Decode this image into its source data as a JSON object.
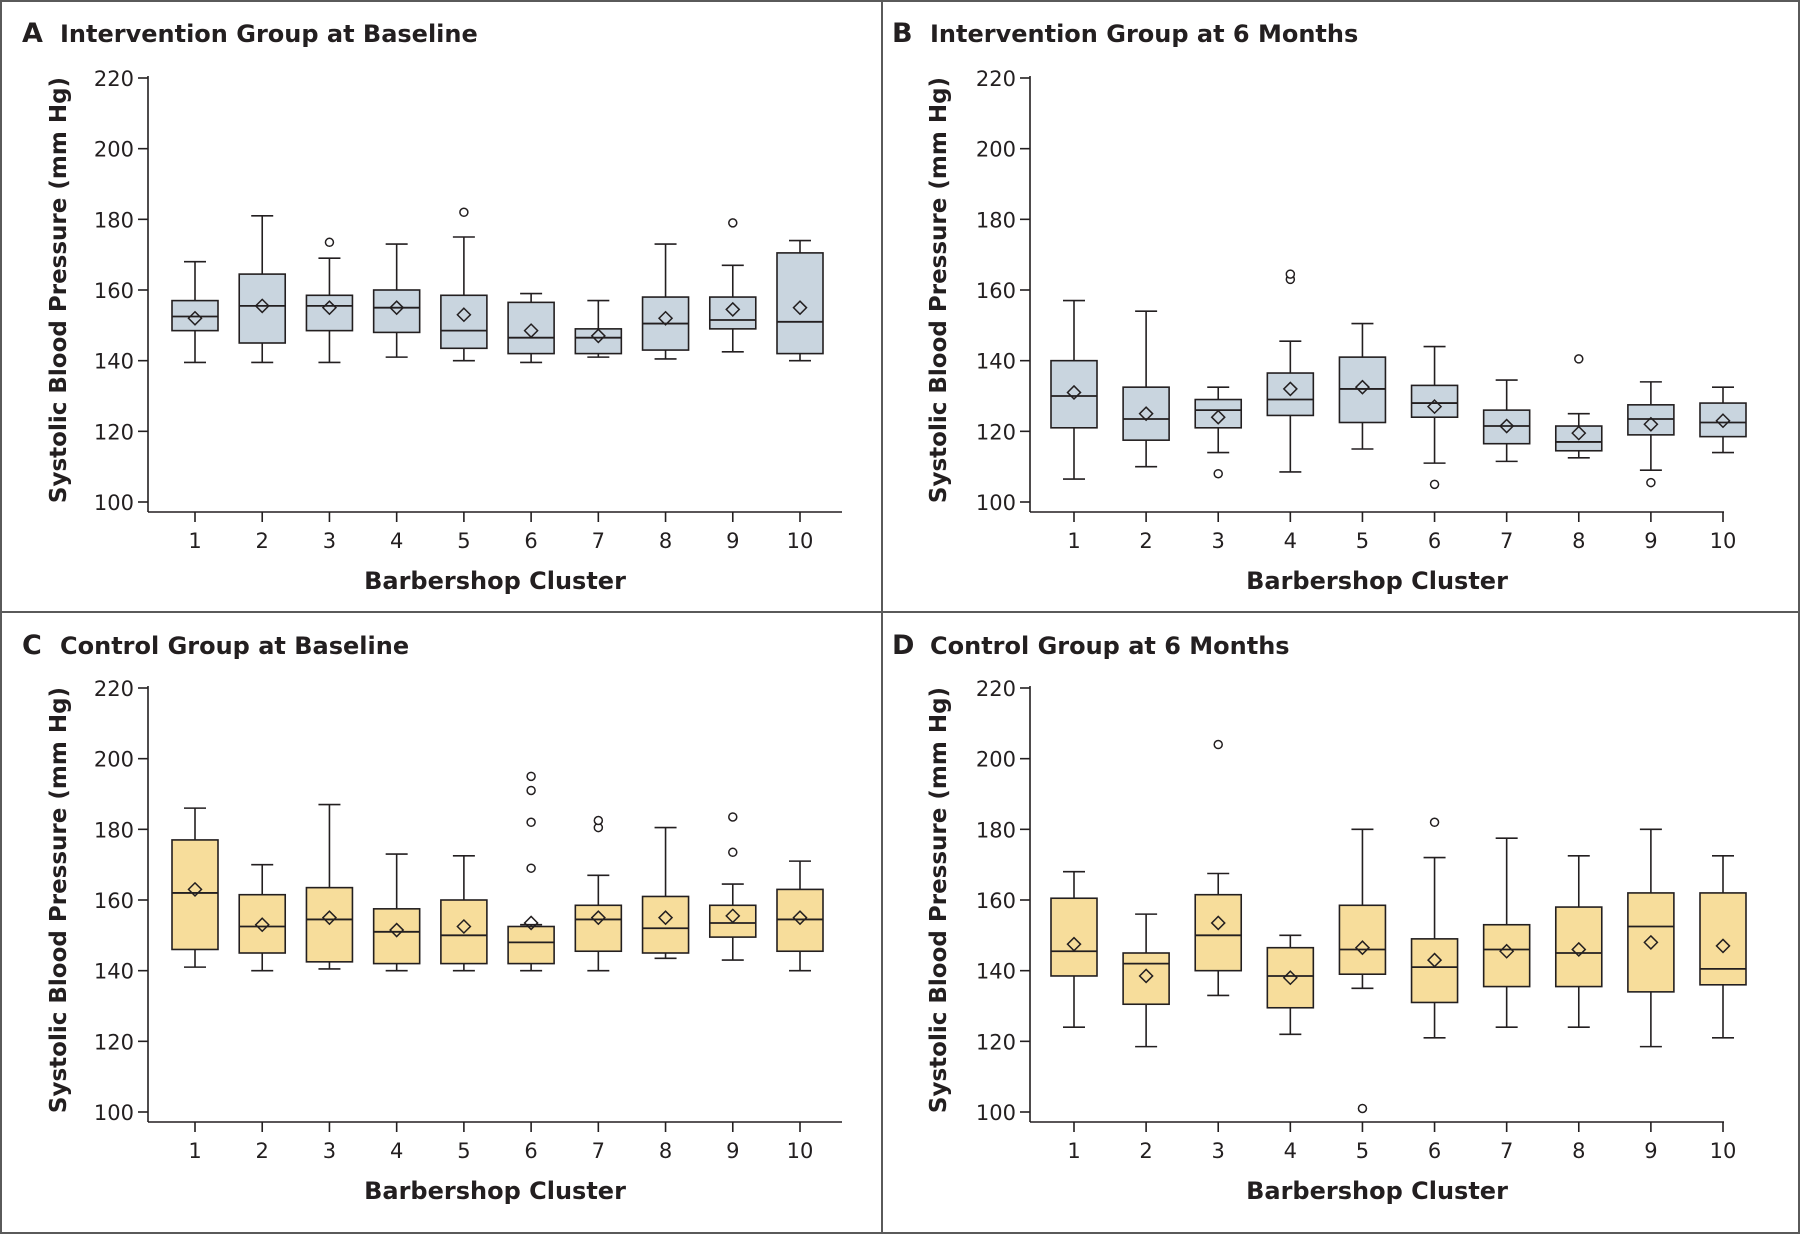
{
  "colors": {
    "intervention_fill": "#c9d5df",
    "control_fill": "#f7dd9b",
    "stroke": "#231f20",
    "border": "#5a5a5a"
  },
  "chart_data": [
    {
      "type": "boxplot",
      "letter": "A",
      "title": "Intervention Group at Baseline",
      "xlabel": "Barbershop Cluster",
      "ylabel": "Systolic Blood Pressure (mm Hg)",
      "ylim": [
        100,
        220
      ],
      "yticks": [
        100,
        120,
        140,
        160,
        180,
        200,
        220
      ],
      "fill_key": "intervention_fill",
      "categories": [
        "1",
        "2",
        "3",
        "4",
        "5",
        "6",
        "7",
        "8",
        "9",
        "10"
      ],
      "boxes": [
        {
          "min": 139.5,
          "q1": 148.5,
          "median": 152.5,
          "q3": 157,
          "max": 168,
          "mean": 152,
          "outliers": []
        },
        {
          "min": 139.5,
          "q1": 145,
          "median": 155.5,
          "q3": 164.5,
          "max": 181,
          "mean": 155.5,
          "outliers": []
        },
        {
          "min": 139.5,
          "q1": 148.5,
          "median": 155.5,
          "q3": 158.5,
          "max": 169,
          "mean": 155,
          "outliers": [
            173.5
          ]
        },
        {
          "min": 141,
          "q1": 148,
          "median": 155,
          "q3": 160,
          "max": 173,
          "mean": 155,
          "outliers": []
        },
        {
          "min": 140,
          "q1": 143.5,
          "median": 148.5,
          "q3": 158.5,
          "max": 175,
          "mean": 153,
          "outliers": [
            182
          ]
        },
        {
          "min": 139.5,
          "q1": 142,
          "median": 146.5,
          "q3": 156.5,
          "max": 159,
          "mean": 148.5,
          "outliers": []
        },
        {
          "min": 141,
          "q1": 142,
          "median": 146.5,
          "q3": 149,
          "max": 157,
          "mean": 147,
          "outliers": []
        },
        {
          "min": 140.5,
          "q1": 143,
          "median": 150.5,
          "q3": 158,
          "max": 173,
          "mean": 152,
          "outliers": []
        },
        {
          "min": 142.5,
          "q1": 149,
          "median": 151.5,
          "q3": 158,
          "max": 167,
          "mean": 154.5,
          "outliers": [
            179
          ]
        },
        {
          "min": 140,
          "q1": 142,
          "median": 151,
          "q3": 170.5,
          "max": 174,
          "mean": 155,
          "outliers": []
        }
      ]
    },
    {
      "type": "boxplot",
      "letter": "B",
      "title": "Intervention Group at 6 Months",
      "xlabel": "Barbershop Cluster",
      "ylabel": "Systolic Blood Pressure (mm Hg)",
      "ylim": [
        100,
        220
      ],
      "yticks": [
        100,
        120,
        140,
        160,
        180,
        200,
        220
      ],
      "fill_key": "intervention_fill",
      "categories": [
        "1",
        "2",
        "3",
        "4",
        "5",
        "6",
        "7",
        "8",
        "9",
        "10"
      ],
      "boxes": [
        {
          "min": 106.5,
          "q1": 121,
          "median": 130,
          "q3": 140,
          "max": 157,
          "mean": 131,
          "outliers": []
        },
        {
          "min": 110,
          "q1": 117.5,
          "median": 123.5,
          "q3": 132.5,
          "max": 154,
          "mean": 125,
          "outliers": []
        },
        {
          "min": 114,
          "q1": 121,
          "median": 126,
          "q3": 129,
          "max": 132.5,
          "mean": 124,
          "outliers": [
            108
          ]
        },
        {
          "min": 108.5,
          "q1": 124.5,
          "median": 129,
          "q3": 136.5,
          "max": 145.5,
          "mean": 132,
          "outliers": [
            163,
            164.5
          ]
        },
        {
          "min": 115,
          "q1": 122.5,
          "median": 132,
          "q3": 141,
          "max": 150.5,
          "mean": 132.5,
          "outliers": []
        },
        {
          "min": 111,
          "q1": 124,
          "median": 128,
          "q3": 133,
          "max": 144,
          "mean": 127,
          "outliers": [
            105
          ]
        },
        {
          "min": 111.5,
          "q1": 116.5,
          "median": 121.5,
          "q3": 126,
          "max": 134.5,
          "mean": 121.5,
          "outliers": []
        },
        {
          "min": 112.5,
          "q1": 114.5,
          "median": 117,
          "q3": 121.5,
          "max": 125,
          "mean": 119.5,
          "outliers": [
            140.5
          ]
        },
        {
          "min": 109,
          "q1": 119,
          "median": 123.5,
          "q3": 127.5,
          "max": 134,
          "mean": 122,
          "outliers": [
            105.5
          ]
        },
        {
          "min": 114,
          "q1": 118.5,
          "median": 122.5,
          "q3": 128,
          "max": 132.5,
          "mean": 123,
          "outliers": []
        }
      ]
    },
    {
      "type": "boxplot",
      "letter": "C",
      "title": "Control Group at Baseline",
      "xlabel": "Barbershop Cluster",
      "ylabel": "Systolic Blood Pressure (mm Hg)",
      "ylim": [
        100,
        220
      ],
      "yticks": [
        100,
        120,
        140,
        160,
        180,
        200,
        220
      ],
      "fill_key": "control_fill",
      "categories": [
        "1",
        "2",
        "3",
        "4",
        "5",
        "6",
        "7",
        "8",
        "9",
        "10"
      ],
      "boxes": [
        {
          "min": 141,
          "q1": 146,
          "median": 162,
          "q3": 177,
          "max": 186,
          "mean": 163,
          "outliers": []
        },
        {
          "min": 140,
          "q1": 145,
          "median": 152.5,
          "q3": 161.5,
          "max": 170,
          "mean": 153,
          "outliers": []
        },
        {
          "min": 140.5,
          "q1": 142.5,
          "median": 154.5,
          "q3": 163.5,
          "max": 187,
          "mean": 155,
          "outliers": []
        },
        {
          "min": 140,
          "q1": 142,
          "median": 151,
          "q3": 157.5,
          "max": 173,
          "mean": 151.5,
          "outliers": []
        },
        {
          "min": 140,
          "q1": 142,
          "median": 150,
          "q3": 160,
          "max": 172.5,
          "mean": 152.5,
          "outliers": []
        },
        {
          "min": 140,
          "q1": 142,
          "median": 148,
          "q3": 152.5,
          "max": 153,
          "mean": 153.5,
          "outliers": [
            169,
            182,
            191,
            195
          ]
        },
        {
          "min": 140,
          "q1": 145.5,
          "median": 154.5,
          "q3": 158.5,
          "max": 167,
          "mean": 155,
          "outliers": [
            180.5,
            182.5
          ]
        },
        {
          "min": 143.5,
          "q1": 145,
          "median": 152,
          "q3": 161,
          "max": 180.5,
          "mean": 155,
          "outliers": []
        },
        {
          "min": 143,
          "q1": 149.5,
          "median": 153.5,
          "q3": 158.5,
          "max": 164.5,
          "mean": 155.5,
          "outliers": [
            173.5,
            183.5
          ]
        },
        {
          "min": 140,
          "q1": 145.5,
          "median": 154.5,
          "q3": 163,
          "max": 171,
          "mean": 155,
          "outliers": []
        }
      ]
    },
    {
      "type": "boxplot",
      "letter": "D",
      "title": "Control Group at 6 Months",
      "xlabel": "Barbershop Cluster",
      "ylabel": "Systolic Blood Pressure (mm Hg)",
      "ylim": [
        100,
        220
      ],
      "yticks": [
        100,
        120,
        140,
        160,
        180,
        200,
        220
      ],
      "fill_key": "control_fill",
      "categories": [
        "1",
        "2",
        "3",
        "4",
        "5",
        "6",
        "7",
        "8",
        "9",
        "10"
      ],
      "boxes": [
        {
          "min": 124,
          "q1": 138.5,
          "median": 145.5,
          "q3": 160.5,
          "max": 168,
          "mean": 147.5,
          "outliers": []
        },
        {
          "min": 118.5,
          "q1": 130.5,
          "median": 142,
          "q3": 145,
          "max": 156,
          "mean": 138.5,
          "outliers": []
        },
        {
          "min": 133,
          "q1": 140,
          "median": 150,
          "q3": 161.5,
          "max": 167.5,
          "mean": 153.5,
          "outliers": [
            204
          ]
        },
        {
          "min": 122,
          "q1": 129.5,
          "median": 138.5,
          "q3": 146.5,
          "max": 150,
          "mean": 138,
          "outliers": []
        },
        {
          "min": 135,
          "q1": 139,
          "median": 146,
          "q3": 158.5,
          "max": 180,
          "mean": 146.5,
          "outliers": [
            101
          ]
        },
        {
          "min": 121,
          "q1": 131,
          "median": 141,
          "q3": 149,
          "max": 172,
          "mean": 143,
          "outliers": [
            182
          ]
        },
        {
          "min": 124,
          "q1": 135.5,
          "median": 146,
          "q3": 153,
          "max": 177.5,
          "mean": 145.5,
          "outliers": []
        },
        {
          "min": 124,
          "q1": 135.5,
          "median": 145,
          "q3": 158,
          "max": 172.5,
          "mean": 146,
          "outliers": []
        },
        {
          "min": 118.5,
          "q1": 134,
          "median": 152.5,
          "q3": 162,
          "max": 180,
          "mean": 148,
          "outliers": []
        },
        {
          "min": 121,
          "q1": 136,
          "median": 140.5,
          "q3": 162,
          "max": 172.5,
          "mean": 147,
          "outliers": []
        }
      ]
    }
  ]
}
